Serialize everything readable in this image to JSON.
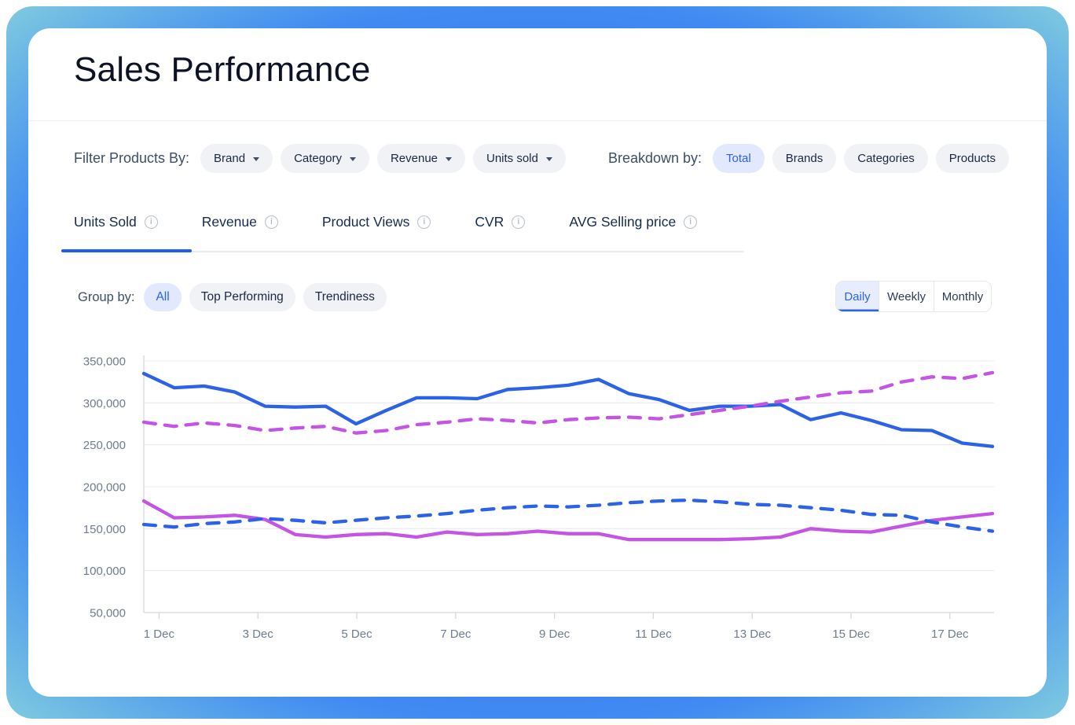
{
  "page": {
    "title": "Sales Performance"
  },
  "filters": {
    "label": "Filter Products By:",
    "dropdowns": [
      {
        "label": "Brand"
      },
      {
        "label": "Category"
      },
      {
        "label": "Revenue"
      },
      {
        "label": "Units sold"
      }
    ]
  },
  "breakdown": {
    "label": "Breakdown by:",
    "options": [
      {
        "label": "Total",
        "selected": true
      },
      {
        "label": "Brands",
        "selected": false
      },
      {
        "label": "Categories",
        "selected": false
      },
      {
        "label": "Products",
        "selected": false
      }
    ]
  },
  "tabs": {
    "items": [
      {
        "label": "Units Sold",
        "active": true
      },
      {
        "label": "Revenue",
        "active": false
      },
      {
        "label": "Product Views",
        "active": false
      },
      {
        "label": "CVR",
        "active": false
      },
      {
        "label": "AVG Selling price",
        "active": false
      }
    ]
  },
  "group_by": {
    "label": "Group by:",
    "options": [
      {
        "label": "All",
        "selected": true
      },
      {
        "label": "Top Performing",
        "selected": false
      },
      {
        "label": "Trendiness",
        "selected": false
      }
    ]
  },
  "granularity": {
    "options": [
      {
        "label": "Daily",
        "selected": true
      },
      {
        "label": "Weekly",
        "selected": false
      },
      {
        "label": "Monthly",
        "selected": false
      }
    ]
  },
  "colors": {
    "accent_blue": "#2B62E8",
    "accent_magenta": "#C454E4",
    "selected_pill_bg": "#E2E8FD",
    "pill_bg": "#F1F2F5",
    "active_tab_underline": "#1F5EEA",
    "grid_line": "#ECEEF1",
    "axis_line": "#D3D8DF",
    "axis_text": "#6E7B90"
  },
  "chart_data": {
    "type": "line",
    "title": "",
    "xlabel": "",
    "ylabel": "",
    "legend": "none",
    "grid": "horizontal",
    "y_range": [
      50000,
      350000
    ],
    "y_tick_labels": [
      "350,000",
      "300,000",
      "250,000",
      "200,000",
      "150,000",
      "100,000",
      "50,000"
    ],
    "x_tick_labels": [
      "1 Dec",
      "3 Dec",
      "5 Dec",
      "7 Dec",
      "9 Dec",
      "11 Dec",
      "13 Dec",
      "15 Dec",
      "17 Dec"
    ],
    "series": [
      {
        "name": "solid-blue",
        "style": "solid",
        "color": "#2B62E8",
        "values": [
          335000,
          318000,
          320000,
          313000,
          296000,
          295000,
          296000,
          275000,
          291000,
          306000,
          306000,
          305000,
          316000,
          318000,
          321000,
          328000,
          311000,
          304000,
          291000,
          296000,
          296000,
          298000,
          280000,
          288000,
          279000,
          268000,
          267000,
          252000,
          248000
        ]
      },
      {
        "name": "dashed-magenta",
        "style": "dashed",
        "color": "#C454E4",
        "values": [
          277000,
          272000,
          276000,
          273000,
          267000,
          270000,
          272000,
          264000,
          267000,
          274000,
          277000,
          281000,
          279000,
          276000,
          280000,
          282000,
          283000,
          281000,
          286000,
          291000,
          296000,
          302000,
          307000,
          312000,
          314000,
          325000,
          331000,
          329000,
          336000
        ]
      },
      {
        "name": "solid-magenta",
        "style": "solid",
        "color": "#C454E4",
        "values": [
          183000,
          163000,
          164000,
          166000,
          161000,
          143000,
          140000,
          143000,
          144000,
          140000,
          146000,
          143000,
          144000,
          147000,
          144000,
          144000,
          137000,
          137000,
          137000,
          137000,
          138000,
          140000,
          150000,
          147000,
          146000,
          153000,
          160000,
          164000,
          168000
        ]
      },
      {
        "name": "dashed-blue",
        "style": "dashed",
        "color": "#2B62E8",
        "values": [
          155000,
          152000,
          156000,
          158000,
          162000,
          160000,
          157000,
          160000,
          163000,
          165000,
          168000,
          172000,
          175000,
          177000,
          176000,
          178000,
          181000,
          183000,
          184000,
          182000,
          179000,
          178000,
          175000,
          172000,
          167000,
          166000,
          158000,
          152000,
          147000
        ]
      }
    ]
  }
}
